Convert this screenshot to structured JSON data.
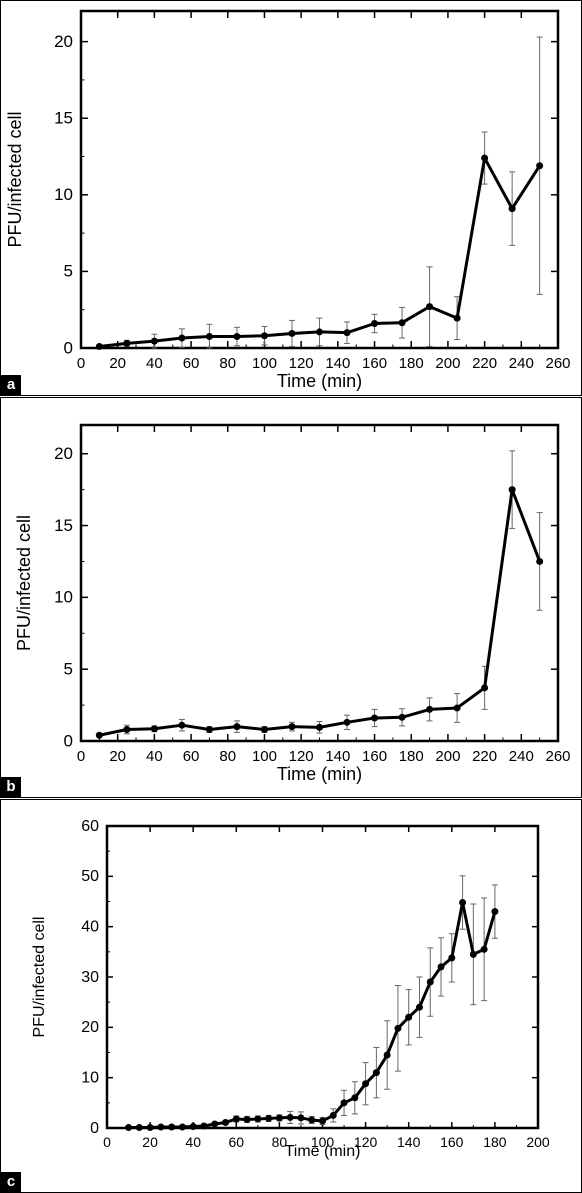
{
  "chart_data": [
    {
      "panel": "a",
      "type": "line",
      "xlabel": "Time (min)",
      "ylabel": "PFU/infected cell",
      "xlim": [
        0,
        260
      ],
      "ylim": [
        0,
        22
      ],
      "xticks": [
        0,
        20,
        40,
        60,
        80,
        100,
        120,
        140,
        160,
        180,
        200,
        220,
        240,
        260
      ],
      "yticks": [
        0,
        5,
        10,
        15,
        20
      ],
      "series": [
        {
          "x": [
            10,
            25,
            40,
            55,
            70,
            85,
            100,
            115,
            130,
            145,
            160,
            175,
            190,
            205,
            220,
            235,
            250
          ],
          "y": [
            0.1,
            0.3,
            0.45,
            0.65,
            0.75,
            0.75,
            0.8,
            0.95,
            1.05,
            1.0,
            1.6,
            1.65,
            2.7,
            1.95,
            12.4,
            9.1,
            11.9
          ],
          "err": [
            0.1,
            0.2,
            0.45,
            0.6,
            0.8,
            0.6,
            0.6,
            0.85,
            0.9,
            0.7,
            0.6,
            1.0,
            2.6,
            1.4,
            1.7,
            2.4,
            8.4
          ]
        }
      ]
    },
    {
      "panel": "b",
      "type": "line",
      "xlabel": "Time (min)",
      "ylabel": "PFU/infected cell",
      "xlim": [
        0,
        260
      ],
      "ylim": [
        0,
        22
      ],
      "xticks": [
        0,
        20,
        40,
        60,
        80,
        100,
        120,
        140,
        160,
        180,
        200,
        220,
        240,
        260
      ],
      "yticks": [
        0,
        5,
        10,
        15,
        20
      ],
      "series": [
        {
          "x": [
            10,
            25,
            40,
            55,
            70,
            85,
            100,
            115,
            130,
            145,
            160,
            175,
            190,
            205,
            220,
            235,
            250
          ],
          "y": [
            0.4,
            0.8,
            0.85,
            1.1,
            0.8,
            1.0,
            0.8,
            1.0,
            0.95,
            1.3,
            1.6,
            1.65,
            2.2,
            2.3,
            3.7,
            17.5,
            12.5
          ],
          "err": [
            0.1,
            0.3,
            0.2,
            0.4,
            0.2,
            0.4,
            0.2,
            0.3,
            0.4,
            0.5,
            0.6,
            0.6,
            0.8,
            1.0,
            1.5,
            2.7,
            3.4
          ]
        }
      ]
    },
    {
      "panel": "c",
      "type": "line",
      "xlabel": "Time (min)",
      "ylabel": "PFU/infected cell",
      "xlim": [
        0,
        200
      ],
      "ylim": [
        0,
        60
      ],
      "xticks": [
        0,
        20,
        40,
        60,
        80,
        100,
        120,
        140,
        160,
        180,
        200
      ],
      "yticks": [
        0,
        10,
        20,
        30,
        40,
        50,
        60
      ],
      "series": [
        {
          "x": [
            10,
            15,
            20,
            25,
            30,
            35,
            40,
            45,
            50,
            55,
            60,
            65,
            70,
            75,
            80,
            85,
            90,
            95,
            100,
            105,
            110,
            115,
            120,
            125,
            130,
            135,
            140,
            145,
            150,
            155,
            160,
            165,
            170,
            175,
            180
          ],
          "y": [
            0.1,
            0.1,
            0.1,
            0.2,
            0.2,
            0.2,
            0.3,
            0.4,
            0.8,
            1.1,
            1.8,
            1.7,
            1.8,
            1.9,
            2.0,
            2.1,
            2.0,
            1.6,
            1.4,
            2.5,
            5.0,
            6.0,
            8.8,
            11.0,
            14.5,
            19.8,
            22.0,
            24.0,
            29.0,
            32.0,
            33.8,
            44.8,
            34.5,
            35.5,
            43.0
          ],
          "err": [
            0.1,
            0.1,
            0.1,
            0.1,
            0.1,
            0.1,
            0.2,
            0.2,
            0.3,
            0.4,
            0.6,
            0.6,
            0.6,
            0.6,
            0.6,
            1.2,
            1.2,
            0.7,
            0.7,
            1.3,
            2.5,
            3.2,
            4.2,
            5.0,
            6.8,
            8.5,
            5.5,
            6.0,
            6.8,
            5.8,
            4.8,
            5.3,
            10.0,
            10.2,
            5.3
          ]
        }
      ]
    }
  ],
  "panels": [
    {
      "letter": "a"
    },
    {
      "letter": "b"
    },
    {
      "letter": "c"
    }
  ]
}
